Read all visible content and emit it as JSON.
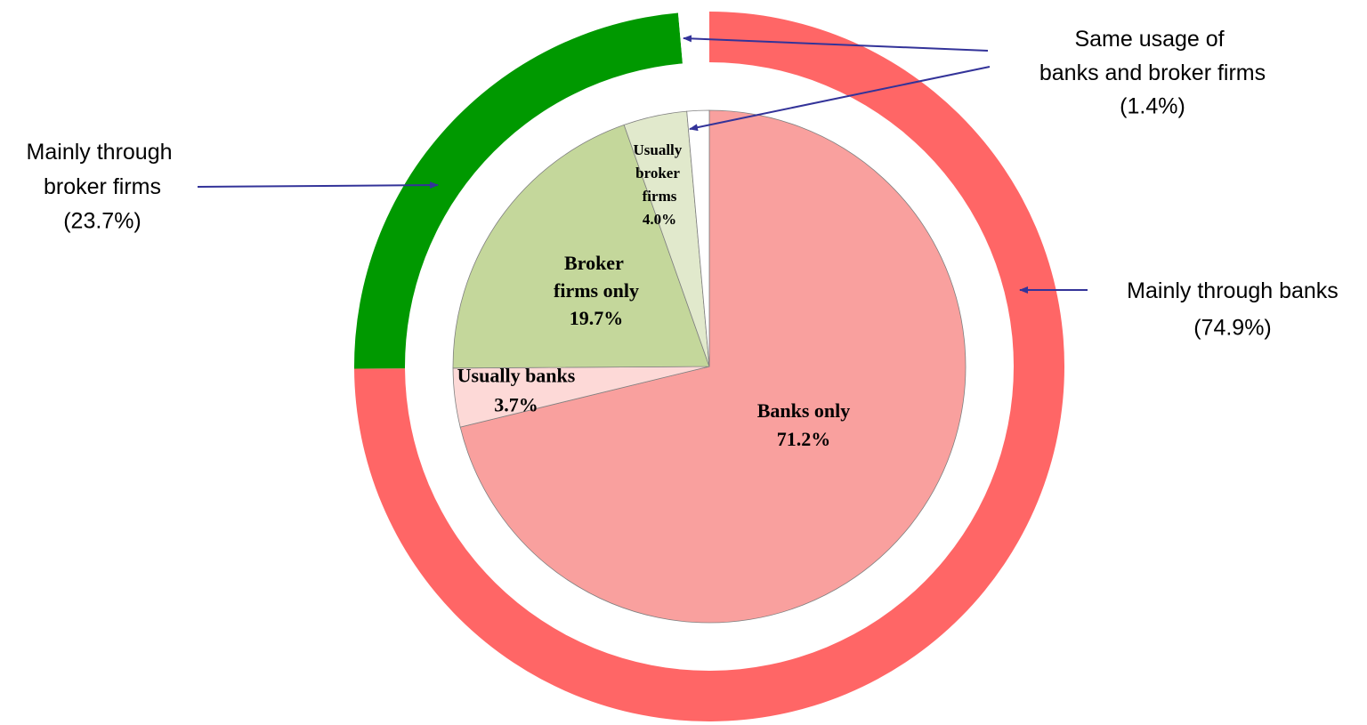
{
  "chart_data": [
    {
      "type": "pie",
      "categories": [
        "Banks only",
        "Usually banks",
        "Broker firms only",
        "Usually broker firms",
        null
      ],
      "values": [
        71.2,
        3.7,
        19.7,
        4.0,
        1.4
      ],
      "value_labels": [
        "71.2%",
        "3.7%",
        "19.7%",
        "4.0%",
        null
      ],
      "colors": [
        "#f9a09e",
        "#fdd9d7",
        "#c4d79b",
        "#e1e9cc",
        "#ffffff"
      ]
    },
    {
      "type": "donut",
      "categories": [
        "Mainly through banks",
        "Mainly through broker firms",
        "Same usage of banks and broker firms"
      ],
      "values": [
        74.9,
        23.7,
        1.4
      ],
      "value_labels": [
        "(74.9%)",
        "(23.7%)",
        "(1.4%)"
      ],
      "colors": [
        "#ff6666",
        "#009900",
        "#ffffff"
      ]
    }
  ]
}
